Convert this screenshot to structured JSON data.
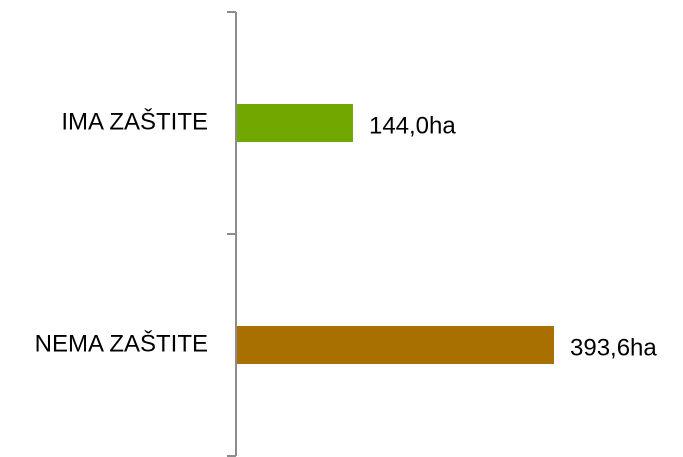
{
  "chart_data": {
    "type": "bar",
    "orientation": "horizontal",
    "categories": [
      "IMA ZAŠTITE",
      "NEMA ZAŠTITE"
    ],
    "values": [
      144.0,
      393.6
    ],
    "data_labels": [
      "144,0ha",
      "393,6ha"
    ],
    "colors": [
      "#70a800",
      "#a87000"
    ],
    "unit": "ha",
    "xlim": [
      0,
      450
    ],
    "grid": false,
    "legend": "none",
    "title": "",
    "xlabel": "",
    "ylabel": ""
  }
}
